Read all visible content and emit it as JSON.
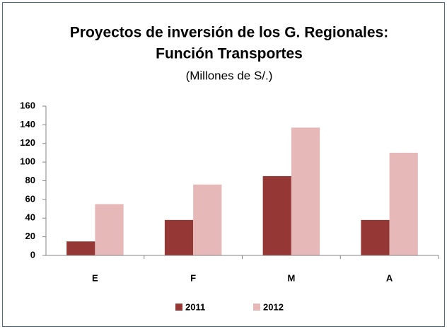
{
  "chart_data": {
    "type": "bar",
    "title": [
      "Proyectos de inversión  de los G. Regionales:",
      "Función Transportes"
    ],
    "subtitle": "(Millones de S/.)",
    "categories": [
      "E",
      "F",
      "M",
      "A"
    ],
    "series": [
      {
        "name": "2011",
        "color": "#953735",
        "values": [
          15,
          38,
          85,
          38
        ]
      },
      {
        "name": "2012",
        "color": "#e6b9b8",
        "values": [
          55,
          76,
          137,
          110
        ]
      }
    ],
    "ylim": [
      0,
      160
    ],
    "yticks": [
      0,
      20,
      40,
      60,
      80,
      100,
      120,
      140,
      160
    ],
    "grid": false,
    "legend": "bottom"
  }
}
